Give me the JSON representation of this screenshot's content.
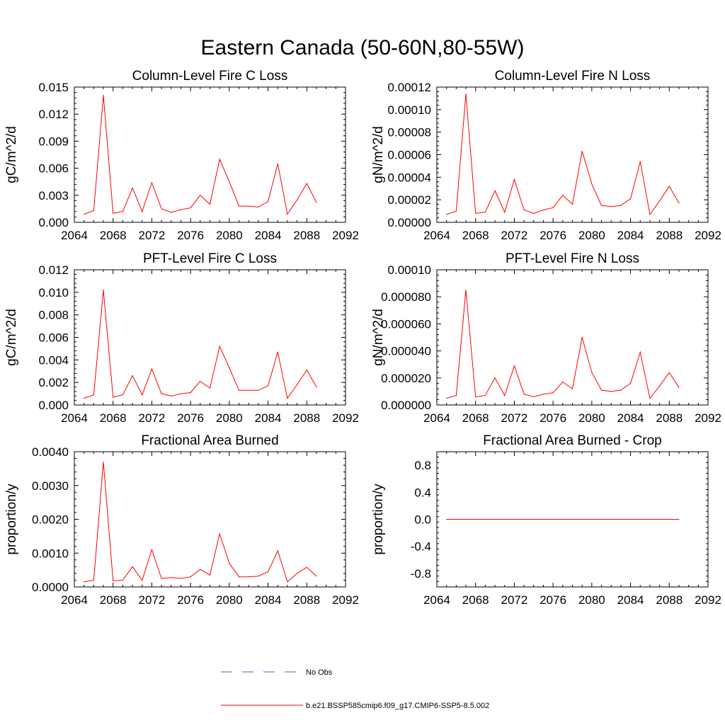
{
  "figure": {
    "title": "Eastern Canada (50-60N,80-55W)"
  },
  "legend": {
    "entries": [
      {
        "label": "No Obs",
        "color": "#5a5ad0",
        "dash": true
      },
      {
        "label": "b.e21.BSSP585cmip6.f09_g17.CMIP6-SSP5-8.5.002",
        "color": "#ff0000",
        "dash": false
      }
    ]
  },
  "chart_data": [
    {
      "type": "line",
      "title": "Column-Level Fire C Loss",
      "xlabel": "",
      "ylabel": "gC/m^2/d",
      "xlim": [
        2064,
        2092
      ],
      "ylim": [
        0,
        0.015
      ],
      "xticks": [
        "2064",
        "2068",
        "2072",
        "2076",
        "2080",
        "2084",
        "2088",
        "2092"
      ],
      "yticks": [
        "0.000",
        "0.003",
        "0.006",
        "0.009",
        "0.012",
        "0.015"
      ],
      "series": [
        {
          "name": "b.e21.BSSP585cmip6.f09_g17.CMIP6-SSP5-8.5.002",
          "color": "#ff0000",
          "x": [
            2065,
            2066,
            2067,
            2068,
            2069,
            2070,
            2071,
            2072,
            2073,
            2074,
            2075,
            2076,
            2077,
            2078,
            2079,
            2080,
            2081,
            2082,
            2083,
            2084,
            2085,
            2086,
            2087,
            2088,
            2089
          ],
          "values": [
            0.0009,
            0.0013,
            0.0141,
            0.001,
            0.0012,
            0.0038,
            0.0012,
            0.0044,
            0.0015,
            0.0011,
            0.0014,
            0.0016,
            0.003,
            0.002,
            0.007,
            0.0045,
            0.0018,
            0.0018,
            0.0017,
            0.0023,
            0.0065,
            0.0009,
            0.0025,
            0.0043,
            0.0022
          ]
        }
      ]
    },
    {
      "type": "line",
      "title": "Column-Level Fire N Loss",
      "xlabel": "",
      "ylabel": "gN/m^2/d",
      "xlim": [
        2064,
        2092
      ],
      "ylim": [
        0,
        0.00012
      ],
      "xticks": [
        "2064",
        "2068",
        "2072",
        "2076",
        "2080",
        "2084",
        "2088",
        "2092"
      ],
      "yticks": [
        "0.00000",
        "0.00002",
        "0.00004",
        "0.00006",
        "0.00008",
        "0.00010",
        "0.00012"
      ],
      "series": [
        {
          "name": "b.e21.BSSP585cmip6.f09_g17.CMIP6-SSP5-8.5.002",
          "color": "#ff0000",
          "x": [
            2065,
            2066,
            2067,
            2068,
            2069,
            2070,
            2071,
            2072,
            2073,
            2074,
            2075,
            2076,
            2077,
            2078,
            2079,
            2080,
            2081,
            2082,
            2083,
            2084,
            2085,
            2086,
            2087,
            2088,
            2089
          ],
          "values": [
            7e-06,
            1e-05,
            0.000114,
            8e-06,
            9e-06,
            2.8e-05,
            9e-06,
            3.8e-05,
            1.1e-05,
            8e-06,
            1.1e-05,
            1.3e-05,
            2.4e-05,
            1.6e-05,
            6.3e-05,
            3.4e-05,
            1.5e-05,
            1.4e-05,
            1.5e-05,
            2.1e-05,
            5.4e-05,
            7e-06,
            1.9e-05,
            3.2e-05,
            1.7e-05
          ]
        }
      ]
    },
    {
      "type": "line",
      "title": "PFT-Level Fire C Loss",
      "xlabel": "",
      "ylabel": "gC/m^2/d",
      "xlim": [
        2064,
        2092
      ],
      "ylim": [
        0,
        0.012
      ],
      "xticks": [
        "2064",
        "2068",
        "2072",
        "2076",
        "2080",
        "2084",
        "2088",
        "2092"
      ],
      "yticks": [
        "0.000",
        "0.002",
        "0.004",
        "0.006",
        "0.008",
        "0.010",
        "0.012"
      ],
      "series": [
        {
          "name": "b.e21.BSSP585cmip6.f09_g17.CMIP6-SSP5-8.5.002",
          "color": "#ff0000",
          "x": [
            2065,
            2066,
            2067,
            2068,
            2069,
            2070,
            2071,
            2072,
            2073,
            2074,
            2075,
            2076,
            2077,
            2078,
            2079,
            2080,
            2081,
            2082,
            2083,
            2084,
            2085,
            2086,
            2087,
            2088,
            2089
          ],
          "values": [
            0.0006,
            0.0009,
            0.0102,
            0.0007,
            0.0009,
            0.0026,
            0.0009,
            0.0032,
            0.001,
            0.0008,
            0.001,
            0.0011,
            0.0021,
            0.0015,
            0.0052,
            0.0033,
            0.0013,
            0.0013,
            0.0013,
            0.0017,
            0.0047,
            0.0006,
            0.0018,
            0.0031,
            0.0016
          ]
        }
      ]
    },
    {
      "type": "line",
      "title": "PFT-Level Fire N Loss",
      "xlabel": "",
      "ylabel": "gN/m^2/d",
      "xlim": [
        2064,
        2092
      ],
      "ylim": [
        0,
        0.0001
      ],
      "xticks": [
        "2064",
        "2068",
        "2072",
        "2076",
        "2080",
        "2084",
        "2088",
        "2092"
      ],
      "yticks": [
        "0.000000",
        "0.000020",
        "0.000040",
        "0.000060",
        "0.000080",
        "0.00010"
      ],
      "series": [
        {
          "name": "b.e21.BSSP585cmip6.f09_g17.CMIP6-SSP5-8.5.002",
          "color": "#ff0000",
          "x": [
            2065,
            2066,
            2067,
            2068,
            2069,
            2070,
            2071,
            2072,
            2073,
            2074,
            2075,
            2076,
            2077,
            2078,
            2079,
            2080,
            2081,
            2082,
            2083,
            2084,
            2085,
            2086,
            2087,
            2088,
            2089
          ],
          "values": [
            5e-06,
            7e-06,
            8.5e-05,
            6e-06,
            7e-06,
            2e-05,
            7e-06,
            2.9e-05,
            8e-06,
            6e-06,
            8e-06,
            9e-06,
            1.7e-05,
            1.2e-05,
            5e-05,
            2.4e-05,
            1.1e-05,
            1e-05,
            1.1e-05,
            1.6e-05,
            3.9e-05,
            5e-06,
            1.4e-05,
            2.4e-05,
            1.3e-05
          ]
        }
      ]
    },
    {
      "type": "line",
      "title": "Fractional Area Burned",
      "xlabel": "",
      "ylabel": "proportion/y",
      "xlim": [
        2064,
        2092
      ],
      "ylim": [
        0,
        0.004
      ],
      "xticks": [
        "2064",
        "2068",
        "2072",
        "2076",
        "2080",
        "2084",
        "2088",
        "2092"
      ],
      "yticks": [
        "0.0000",
        "0.0010",
        "0.0020",
        "0.0030",
        "0.0040"
      ],
      "series": [
        {
          "name": "b.e21.BSSP585cmip6.f09_g17.CMIP6-SSP5-8.5.002",
          "color": "#ff0000",
          "x": [
            2065,
            2066,
            2067,
            2068,
            2069,
            2070,
            2071,
            2072,
            2073,
            2074,
            2075,
            2076,
            2077,
            2078,
            2079,
            2080,
            2081,
            2082,
            2083,
            2084,
            2085,
            2086,
            2087,
            2088,
            2089
          ],
          "values": [
            0.00015,
            0.0002,
            0.0037,
            0.00018,
            0.0002,
            0.0006,
            0.0002,
            0.0011,
            0.00025,
            0.00028,
            0.00025,
            0.0003,
            0.00052,
            0.00035,
            0.00157,
            0.0007,
            0.0003,
            0.0003,
            0.00032,
            0.00045,
            0.00107,
            0.00015,
            0.0004,
            0.00058,
            0.00032
          ]
        }
      ]
    },
    {
      "type": "line",
      "title": "Fractional Area Burned - Crop",
      "xlabel": "",
      "ylabel": "proportion/y",
      "xlim": [
        2064,
        2092
      ],
      "ylim": [
        -1,
        1
      ],
      "xticks": [
        "2064",
        "2068",
        "2072",
        "2076",
        "2080",
        "2084",
        "2088",
        "2092"
      ],
      "yticks": [
        "-0.8",
        "-0.4",
        "0.0",
        "0.4",
        "0.8"
      ],
      "series": [
        {
          "name": "b.e21.BSSP585cmip6.f09_g17.CMIP6-SSP5-8.5.002",
          "color": "#ff0000",
          "x": [
            2065,
            2066,
            2067,
            2068,
            2069,
            2070,
            2071,
            2072,
            2073,
            2074,
            2075,
            2076,
            2077,
            2078,
            2079,
            2080,
            2081,
            2082,
            2083,
            2084,
            2085,
            2086,
            2087,
            2088,
            2089
          ],
          "values": [
            0,
            0,
            0,
            0,
            0,
            0,
            0,
            0,
            0,
            0,
            0,
            0,
            0,
            0,
            0,
            0,
            0,
            0,
            0,
            0,
            0,
            0,
            0,
            0,
            0
          ]
        }
      ]
    }
  ]
}
